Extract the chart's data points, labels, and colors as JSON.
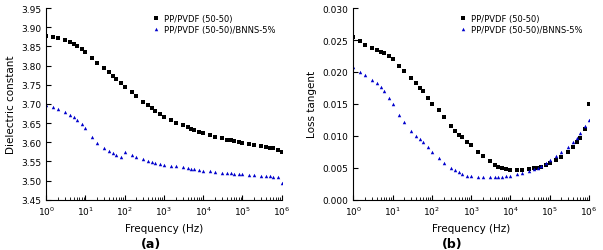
{
  "title_a": "(a)",
  "title_b": "(b)",
  "xlabel": "Frequency (Hz)",
  "ylabel_a": "Dielectric constant",
  "ylabel_b": "Loss tangent",
  "legend_1": "PP/PVDF (50-50)",
  "legend_2": "PP/PVDF (50-50)/BNNS-5%",
  "color_1": "#000000",
  "color_2": "#0000cc",
  "ylim_a": [
    3.45,
    3.95
  ],
  "ylim_b": [
    0.0,
    0.03
  ],
  "yticks_a": [
    3.45,
    3.5,
    3.55,
    3.6,
    3.65,
    3.7,
    3.75,
    3.8,
    3.85,
    3.9,
    3.95
  ],
  "yticks_b": [
    0.0,
    0.005,
    0.01,
    0.015,
    0.02,
    0.025,
    0.03
  ],
  "freq_a1": [
    1,
    1.5,
    2,
    3,
    4,
    5,
    6,
    8,
    10,
    15,
    20,
    30,
    40,
    50,
    60,
    80,
    100,
    150,
    200,
    300,
    400,
    500,
    600,
    800,
    1000,
    1500,
    2000,
    3000,
    4000,
    5000,
    6000,
    8000,
    10000,
    15000,
    20000,
    30000,
    40000,
    50000,
    60000,
    80000,
    100000,
    150000,
    200000,
    300000,
    400000,
    500000,
    600000,
    800000,
    1000000
  ],
  "val_a1": [
    3.878,
    3.875,
    3.872,
    3.867,
    3.862,
    3.856,
    3.851,
    3.843,
    3.835,
    3.82,
    3.808,
    3.793,
    3.782,
    3.773,
    3.766,
    3.754,
    3.745,
    3.73,
    3.72,
    3.706,
    3.696,
    3.689,
    3.682,
    3.673,
    3.666,
    3.658,
    3.651,
    3.645,
    3.64,
    3.635,
    3.632,
    3.627,
    3.623,
    3.618,
    3.614,
    3.61,
    3.607,
    3.605,
    3.603,
    3.6,
    3.598,
    3.595,
    3.593,
    3.59,
    3.588,
    3.586,
    3.584,
    3.581,
    3.575
  ],
  "freq_a2": [
    1,
    1.5,
    2,
    3,
    4,
    5,
    6,
    8,
    10,
    15,
    20,
    30,
    40,
    50,
    60,
    80,
    100,
    150,
    200,
    300,
    400,
    500,
    600,
    800,
    1000,
    1500,
    2000,
    3000,
    4000,
    5000,
    6000,
    8000,
    10000,
    15000,
    20000,
    30000,
    40000,
    50000,
    60000,
    80000,
    100000,
    150000,
    200000,
    300000,
    400000,
    500000,
    600000,
    800000,
    1000000
  ],
  "val_a2": [
    3.698,
    3.693,
    3.688,
    3.68,
    3.672,
    3.665,
    3.659,
    3.648,
    3.637,
    3.615,
    3.598,
    3.585,
    3.578,
    3.573,
    3.568,
    3.562,
    3.575,
    3.567,
    3.562,
    3.556,
    3.552,
    3.549,
    3.547,
    3.544,
    3.542,
    3.539,
    3.537,
    3.535,
    3.533,
    3.531,
    3.53,
    3.528,
    3.526,
    3.524,
    3.522,
    3.521,
    3.52,
    3.519,
    3.518,
    3.517,
    3.516,
    3.515,
    3.514,
    3.513,
    3.512,
    3.511,
    3.51,
    3.509,
    3.495
  ],
  "freq_b1": [
    1,
    1.5,
    2,
    3,
    4,
    5,
    6,
    8,
    10,
    15,
    20,
    30,
    40,
    50,
    60,
    80,
    100,
    150,
    200,
    300,
    400,
    500,
    600,
    800,
    1000,
    1500,
    2000,
    3000,
    4000,
    5000,
    6000,
    8000,
    10000,
    15000,
    20000,
    30000,
    40000,
    50000,
    60000,
    80000,
    100000,
    150000,
    200000,
    300000,
    400000,
    500000,
    600000,
    800000,
    1000000
  ],
  "val_b1": [
    0.0255,
    0.0248,
    0.0242,
    0.0238,
    0.0234,
    0.0232,
    0.023,
    0.0225,
    0.022,
    0.021,
    0.0202,
    0.019,
    0.0182,
    0.0175,
    0.017,
    0.016,
    0.015,
    0.014,
    0.013,
    0.0115,
    0.0108,
    0.0102,
    0.0098,
    0.009,
    0.0085,
    0.0075,
    0.0068,
    0.006,
    0.0055,
    0.0052,
    0.005,
    0.0048,
    0.0047,
    0.0047,
    0.0047,
    0.0048,
    0.0049,
    0.005,
    0.0052,
    0.0055,
    0.0058,
    0.0062,
    0.0067,
    0.0075,
    0.0082,
    0.009,
    0.0097,
    0.011,
    0.015
  ],
  "freq_b2": [
    1,
    1.5,
    2,
    3,
    4,
    5,
    6,
    8,
    10,
    15,
    20,
    30,
    40,
    50,
    60,
    80,
    100,
    150,
    200,
    300,
    400,
    500,
    600,
    800,
    1000,
    1500,
    2000,
    3000,
    4000,
    5000,
    6000,
    8000,
    10000,
    15000,
    20000,
    30000,
    40000,
    50000,
    60000,
    80000,
    100000,
    150000,
    200000,
    300000,
    400000,
    500000,
    600000,
    800000,
    1000000
  ],
  "val_b2": [
    0.0208,
    0.02,
    0.0195,
    0.0188,
    0.0182,
    0.0176,
    0.017,
    0.016,
    0.015,
    0.0133,
    0.0122,
    0.0108,
    0.01,
    0.0095,
    0.009,
    0.0082,
    0.0075,
    0.0065,
    0.0058,
    0.005,
    0.0046,
    0.0043,
    0.0041,
    0.0038,
    0.0037,
    0.0036,
    0.0036,
    0.0036,
    0.0036,
    0.0036,
    0.0036,
    0.0037,
    0.0038,
    0.004,
    0.0042,
    0.0045,
    0.0048,
    0.005,
    0.0053,
    0.0058,
    0.0062,
    0.0068,
    0.0075,
    0.0082,
    0.009,
    0.0097,
    0.0105,
    0.0115,
    0.0125
  ]
}
